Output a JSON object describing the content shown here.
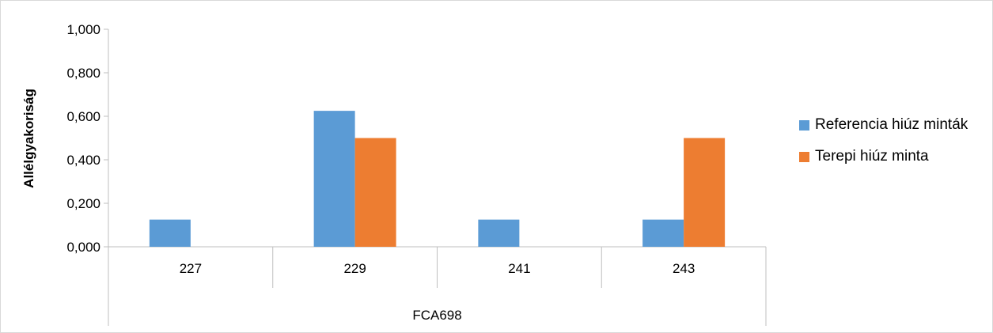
{
  "chart_data": {
    "type": "bar",
    "categories": [
      "227",
      "229",
      "241",
      "243"
    ],
    "group_label": "FCA698",
    "series": [
      {
        "name": "Referencia hiúz minták",
        "values": [
          0.125,
          0.625,
          0.125,
          0.125
        ],
        "color": "#5b9bd5"
      },
      {
        "name": "Terepi  hiúz minta",
        "values": [
          0,
          0.5,
          0,
          0.5
        ],
        "color": "#ed7d31"
      }
    ],
    "ylabel": "Allélgyakoriság",
    "ylim": [
      0,
      1
    ],
    "yticks": [
      "0,000",
      "0,200",
      "0,400",
      "0,600",
      "0,800",
      "1,000"
    ],
    "ytick_values": [
      0,
      0.2,
      0.4,
      0.6,
      0.8,
      1.0
    ],
    "grid": false,
    "legend_position": "right"
  }
}
